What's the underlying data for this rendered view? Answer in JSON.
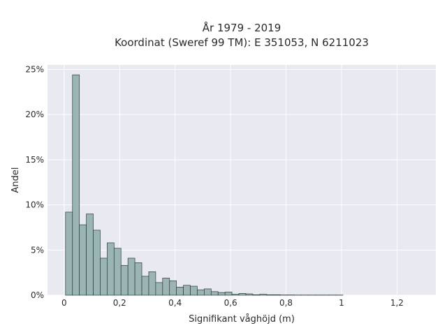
{
  "chart_data": {
    "type": "histogram",
    "title_lines": [
      "År 1979 - 2019",
      "Koordinat (Sweref 99 TM): E 351053, N 6211023"
    ],
    "xlabel": "Signifikant våghöjd (m)",
    "ylabel": "Andel",
    "xlim": [
      -0.06,
      1.34
    ],
    "ylim": [
      0,
      25.5
    ],
    "x_ticks": [
      0,
      0.2,
      0.4,
      0.6,
      0.8,
      1,
      1.2
    ],
    "x_tick_labels": [
      "0",
      "0,2",
      "0,4",
      "0,6",
      "0,8",
      "1",
      "1,2"
    ],
    "y_ticks": [
      0,
      5,
      10,
      15,
      20,
      25
    ],
    "y_tick_labels": [
      "0%",
      "5%",
      "10%",
      "15%",
      "20%",
      "25%"
    ],
    "grid": true,
    "background_color": "#e8e9f1",
    "bar_color": "#9ab5b4",
    "bar_edge_color": "#2f3b3b",
    "bins": [
      {
        "x0": 0.005,
        "x1": 0.03,
        "value": 9.2
      },
      {
        "x0": 0.03,
        "x1": 0.055,
        "value": 24.4
      },
      {
        "x0": 0.055,
        "x1": 0.08,
        "value": 7.8
      },
      {
        "x0": 0.08,
        "x1": 0.105,
        "value": 9.0
      },
      {
        "x0": 0.105,
        "x1": 0.13,
        "value": 7.2
      },
      {
        "x0": 0.13,
        "x1": 0.155,
        "value": 4.1
      },
      {
        "x0": 0.155,
        "x1": 0.18,
        "value": 5.8
      },
      {
        "x0": 0.18,
        "x1": 0.205,
        "value": 5.2
      },
      {
        "x0": 0.205,
        "x1": 0.23,
        "value": 3.3
      },
      {
        "x0": 0.23,
        "x1": 0.255,
        "value": 4.1
      },
      {
        "x0": 0.255,
        "x1": 0.28,
        "value": 3.6
      },
      {
        "x0": 0.28,
        "x1": 0.305,
        "value": 2.1
      },
      {
        "x0": 0.305,
        "x1": 0.33,
        "value": 2.6
      },
      {
        "x0": 0.33,
        "x1": 0.355,
        "value": 1.4
      },
      {
        "x0": 0.355,
        "x1": 0.38,
        "value": 1.9
      },
      {
        "x0": 0.38,
        "x1": 0.405,
        "value": 1.6
      },
      {
        "x0": 0.405,
        "x1": 0.43,
        "value": 0.9
      },
      {
        "x0": 0.43,
        "x1": 0.455,
        "value": 1.1
      },
      {
        "x0": 0.455,
        "x1": 0.48,
        "value": 1.0
      },
      {
        "x0": 0.48,
        "x1": 0.505,
        "value": 0.6
      },
      {
        "x0": 0.505,
        "x1": 0.53,
        "value": 0.7
      },
      {
        "x0": 0.53,
        "x1": 0.555,
        "value": 0.4
      },
      {
        "x0": 0.555,
        "x1": 0.58,
        "value": 0.3
      },
      {
        "x0": 0.58,
        "x1": 0.605,
        "value": 0.35
      },
      {
        "x0": 0.605,
        "x1": 0.63,
        "value": 0.1
      },
      {
        "x0": 0.63,
        "x1": 0.655,
        "value": 0.2
      },
      {
        "x0": 0.655,
        "x1": 0.68,
        "value": 0.15
      },
      {
        "x0": 0.68,
        "x1": 0.705,
        "value": 0.05
      },
      {
        "x0": 0.705,
        "x1": 0.73,
        "value": 0.1
      },
      {
        "x0": 0.73,
        "x1": 0.755,
        "value": 0.05
      },
      {
        "x0": 0.755,
        "x1": 0.78,
        "value": 0.05
      },
      {
        "x0": 0.78,
        "x1": 0.805,
        "value": 0.03
      },
      {
        "x0": 0.805,
        "x1": 0.83,
        "value": 0.03
      },
      {
        "x0": 0.83,
        "x1": 0.855,
        "value": 0.02
      },
      {
        "x0": 0.855,
        "x1": 0.88,
        "value": 0.02
      },
      {
        "x0": 0.88,
        "x1": 0.905,
        "value": 0.02
      },
      {
        "x0": 0.905,
        "x1": 0.93,
        "value": 0.02
      },
      {
        "x0": 0.93,
        "x1": 0.955,
        "value": 0.02
      },
      {
        "x0": 0.955,
        "x1": 0.98,
        "value": 0.02
      },
      {
        "x0": 0.98,
        "x1": 1.005,
        "value": 0.02
      }
    ]
  }
}
